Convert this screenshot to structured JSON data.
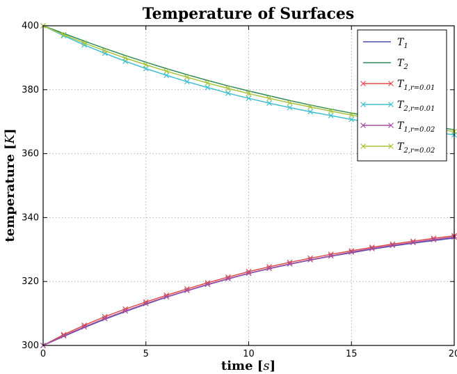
{
  "chart_data": {
    "type": "line",
    "title": "Temperature of Surfaces",
    "xlabel": "time",
    "xlabel_unit": "s",
    "ylabel": "temperature",
    "ylabel_unit": "K",
    "xlim": [
      0,
      20
    ],
    "ylim": [
      300,
      400
    ],
    "xticks": [
      0,
      5,
      10,
      15,
      20
    ],
    "yticks": [
      300,
      320,
      340,
      360,
      380,
      400
    ],
    "grid": true,
    "legend_position": "top-right",
    "x": [
      0,
      1,
      2,
      3,
      4,
      5,
      6,
      7,
      8,
      9,
      10,
      11,
      12,
      13,
      14,
      15,
      16,
      17,
      18,
      19,
      20
    ],
    "series": [
      {
        "name": "T_1",
        "base": "T",
        "sub": "1",
        "color": "#4b4bb0",
        "marker": false,
        "values": [
          300,
          302.8,
          305.6,
          308.2,
          310.6,
          312.9,
          315.1,
          317.1,
          319.0,
          320.8,
          322.5,
          324.0,
          325.4,
          326.7,
          327.9,
          329.0,
          330.1,
          331.1,
          332.0,
          332.8,
          333.6
        ]
      },
      {
        "name": "T_2",
        "base": "T",
        "sub": "2",
        "color": "#2e8b57",
        "marker": false,
        "values": [
          400,
          397.6,
          395.2,
          392.9,
          390.7,
          388.6,
          386.6,
          384.7,
          382.9,
          381.2,
          379.6,
          378.1,
          376.6,
          375.2,
          373.9,
          372.7,
          371.5,
          370.4,
          369.4,
          368.4,
          367.5
        ]
      },
      {
        "name": "T_{1,r=0.01}",
        "base": "T",
        "sub": "1,r=0.01",
        "color": "#e24a4a",
        "marker": true,
        "values": [
          300,
          303.4,
          306.3,
          309.0,
          311.4,
          313.6,
          315.7,
          317.7,
          319.6,
          321.4,
          323.1,
          324.6,
          326.0,
          327.3,
          328.5,
          329.6,
          330.7,
          331.7,
          332.6,
          333.5,
          334.3
        ]
      },
      {
        "name": "T_{2,r=0.01}",
        "base": "T",
        "sub": "2,r=0.01",
        "color": "#3fbfd0",
        "marker": true,
        "values": [
          400,
          396.9,
          394.0,
          391.4,
          388.9,
          386.6,
          384.5,
          382.5,
          380.7,
          378.9,
          377.3,
          375.8,
          374.4,
          373.1,
          371.9,
          370.7,
          369.6,
          368.6,
          367.6,
          366.7,
          365.9
        ]
      },
      {
        "name": "T_{1,r=0.02}",
        "base": "T",
        "sub": "1,r=0.02",
        "color": "#a04fa0",
        "marker": true,
        "values": [
          300,
          303.0,
          305.8,
          308.4,
          310.8,
          313.1,
          315.2,
          317.2,
          319.1,
          320.9,
          322.6,
          324.1,
          325.5,
          326.8,
          328.0,
          329.2,
          330.3,
          331.3,
          332.2,
          333.1,
          333.9
        ]
      },
      {
        "name": "T_{2,r=0.02}",
        "base": "T",
        "sub": "2,r=0.02",
        "color": "#a9c23a",
        "marker": true,
        "values": [
          400,
          397.2,
          394.6,
          392.2,
          389.9,
          387.8,
          385.8,
          383.9,
          382.1,
          380.4,
          378.8,
          377.3,
          375.9,
          374.6,
          373.3,
          372.1,
          370.9,
          369.8,
          368.8,
          367.8,
          366.9
        ]
      }
    ]
  }
}
